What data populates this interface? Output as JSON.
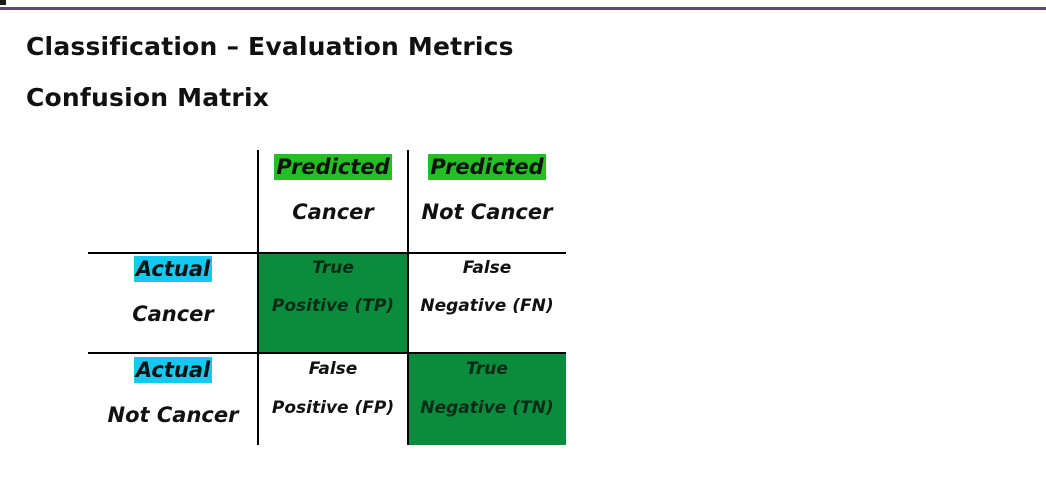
{
  "slide": {
    "title": "Classification – Evaluation Metrics",
    "subtitle": "Confusion Matrix"
  },
  "matrix": {
    "columns": [
      {
        "highlight": "Predicted",
        "label": "Cancer"
      },
      {
        "highlight": "Predicted",
        "label": "Not Cancer"
      }
    ],
    "rows": [
      {
        "highlight": "Actual",
        "label": "Cancer"
      },
      {
        "highlight": "Actual",
        "label": "Not Cancer"
      }
    ],
    "cells": {
      "tp": {
        "line1": "True",
        "line2": "Positive (TP)"
      },
      "fn": {
        "line1": "False",
        "line2": "Negative (FN)"
      },
      "fp": {
        "line1": "False",
        "line2": "Positive (FP)"
      },
      "tn": {
        "line1": "True",
        "line2": "Negative (TN)"
      }
    }
  },
  "colors": {
    "header_highlight": "#22c022",
    "row_highlight": "#13c9ef",
    "correct_cell_fill": "#0a8c3c",
    "top_rule": "#5b4a78"
  }
}
